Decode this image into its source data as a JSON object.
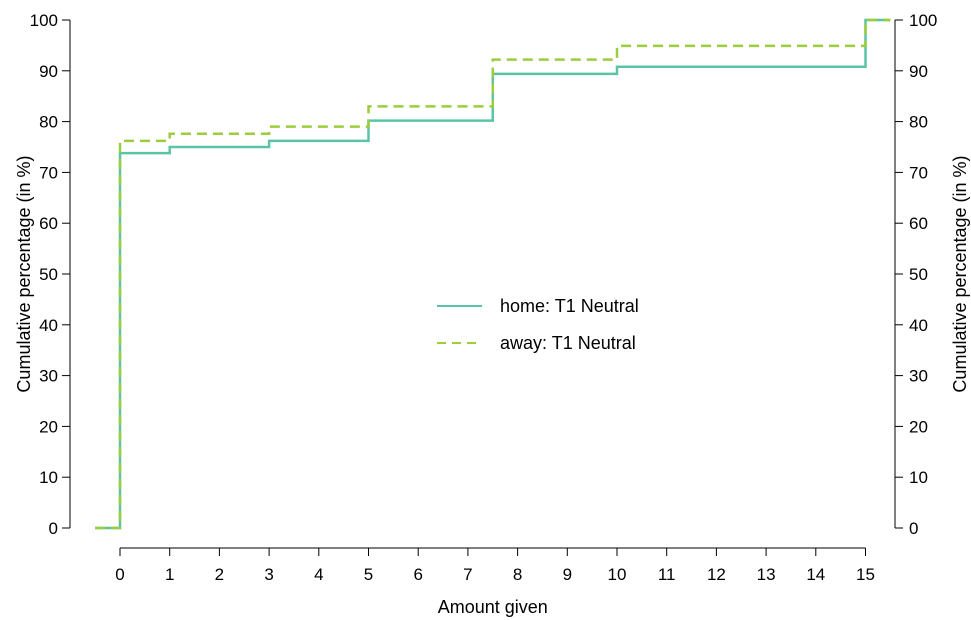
{
  "chart_data": {
    "type": "line",
    "step": true,
    "xlabel": "Amount given",
    "ylabel": "Cumulative percentage (in %)",
    "y2label": "Cumulative percentage (in %)",
    "ylim": [
      0,
      100
    ],
    "categories": [
      "0",
      "1",
      "2",
      "3",
      "4",
      "5",
      "6",
      "7",
      "8",
      "9",
      "10",
      "11",
      "12",
      "13",
      "14",
      "15"
    ],
    "yticks": [
      0,
      10,
      20,
      30,
      40,
      50,
      60,
      70,
      80,
      90,
      100
    ],
    "series": [
      {
        "name": "home: T1 Neutral",
        "color": "#5cc4a6",
        "dash": "solid",
        "points": [
          [
            -0.5,
            0
          ],
          [
            0,
            73.8
          ],
          [
            1,
            75
          ],
          [
            3,
            76.2
          ],
          [
            5,
            80.2
          ],
          [
            7.5,
            89.4
          ],
          [
            10,
            90.8
          ],
          [
            15,
            100
          ]
        ]
      },
      {
        "name": "away: T1 Neutral",
        "color": "#9ccd3d",
        "dash": "dashed",
        "points": [
          [
            -0.5,
            0
          ],
          [
            0,
            76.2
          ],
          [
            1,
            77.6
          ],
          [
            3,
            79
          ],
          [
            5,
            83
          ],
          [
            7.5,
            92.2
          ],
          [
            10,
            94.9
          ],
          [
            15,
            100
          ]
        ]
      }
    ],
    "legend_position": "center",
    "grid": false
  }
}
